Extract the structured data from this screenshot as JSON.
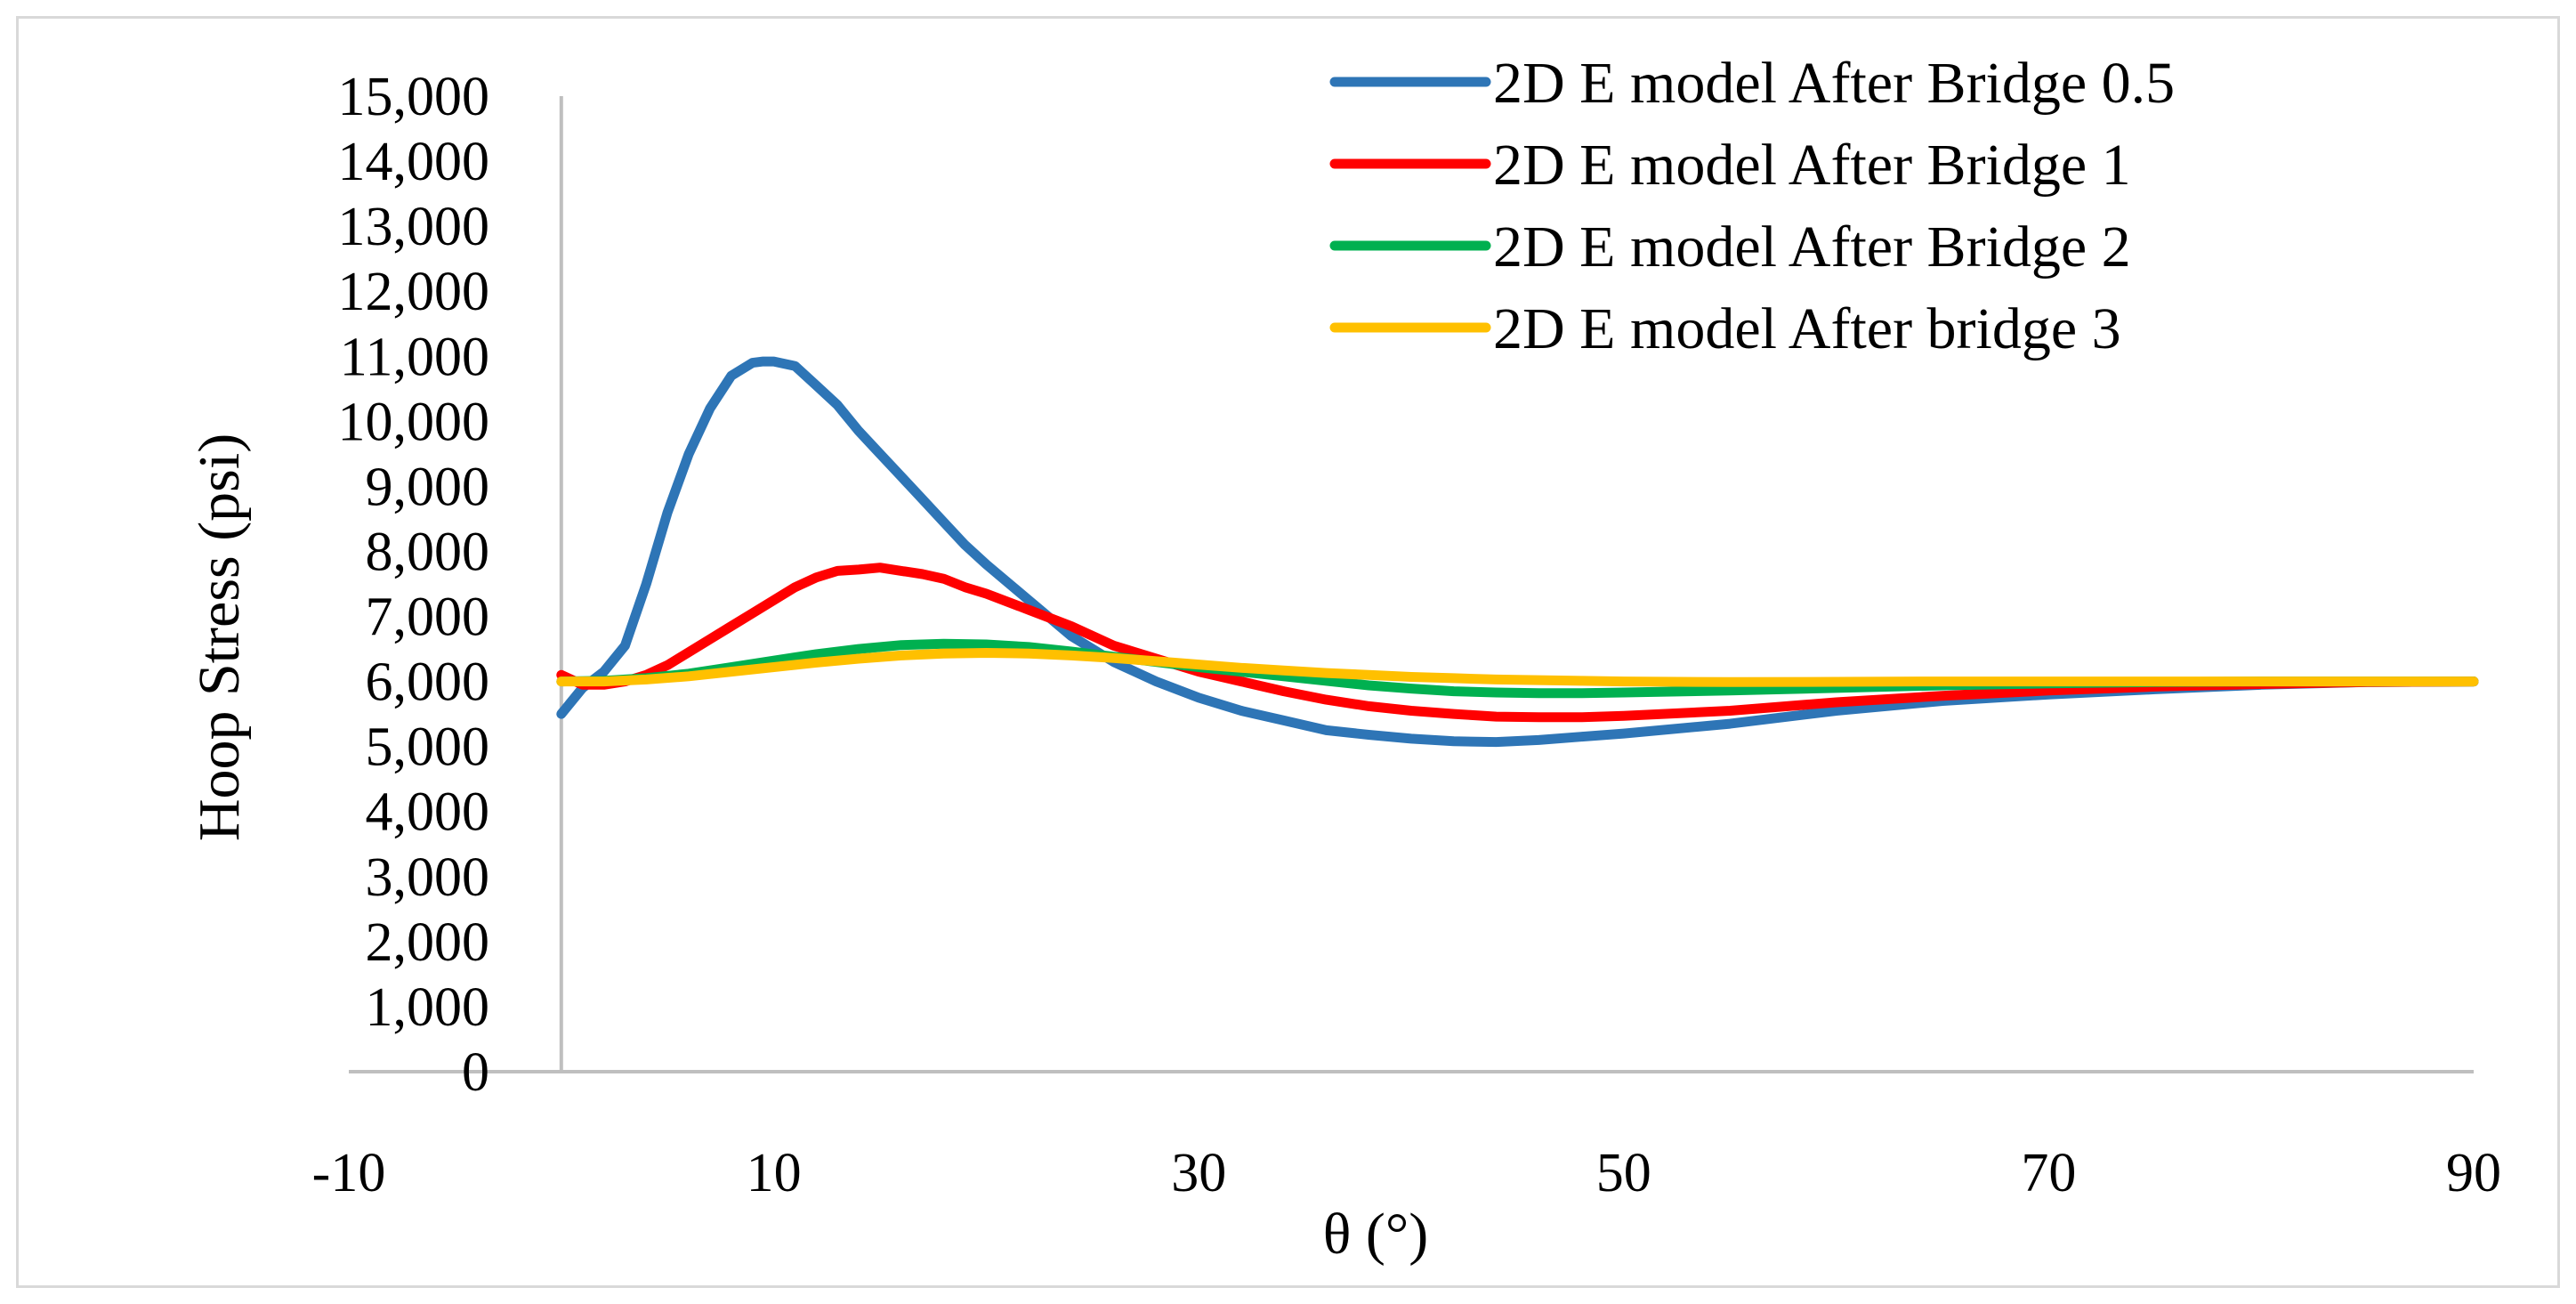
{
  "chart_data": {
    "type": "line",
    "title": "",
    "xlabel": "θ (°)",
    "ylabel": "Hoop Stress (psi)",
    "xlim": [
      -10,
      90
    ],
    "ylim": [
      0,
      15000
    ],
    "x_ticks": [
      -10,
      10,
      30,
      50,
      70,
      90
    ],
    "x_tick_labels": [
      "-10",
      "10",
      "30",
      "50",
      "70",
      "90"
    ],
    "y_ticks": [
      0,
      1000,
      2000,
      3000,
      4000,
      5000,
      6000,
      7000,
      8000,
      9000,
      10000,
      11000,
      12000,
      13000,
      14000,
      15000
    ],
    "y_tick_labels": [
      "0",
      "1,000",
      "2,000",
      "3,000",
      "4,000",
      "5,000",
      "6,000",
      "7,000",
      "8,000",
      "9,000",
      "10,000",
      "11,000",
      "12,000",
      "13,000",
      "14,000",
      "15,000"
    ],
    "grid": false,
    "legend_position": "top-right",
    "series": [
      {
        "name": "2D E model After Bridge 0.5",
        "color": "#2e75b6",
        "x": [
          0,
          1,
          2,
          3,
          4,
          5,
          6,
          7,
          8,
          9,
          9.5,
          10,
          11,
          12,
          13,
          14,
          15,
          16,
          17,
          18,
          19,
          20,
          22,
          24,
          26,
          28,
          30,
          32,
          34,
          36,
          38,
          40,
          42,
          44,
          46,
          48,
          50,
          55,
          60,
          65,
          70,
          75,
          80,
          85,
          90
        ],
        "y": [
          5500,
          5900,
          6150,
          6550,
          7500,
          8600,
          9500,
          10200,
          10700,
          10900,
          10920,
          10920,
          10850,
          10550,
          10250,
          9850,
          9500,
          9150,
          8800,
          8450,
          8100,
          7800,
          7250,
          6700,
          6300,
          6000,
          5750,
          5550,
          5400,
          5250,
          5180,
          5120,
          5080,
          5070,
          5100,
          5150,
          5200,
          5350,
          5550,
          5700,
          5800,
          5880,
          5950,
          5990,
          6000
        ]
      },
      {
        "name": "2D E model After Bridge 1",
        "color": "#ff0000",
        "x": [
          0,
          1,
          2,
          3,
          4,
          5,
          6,
          7,
          8,
          9,
          10,
          11,
          12,
          13,
          14,
          15,
          16,
          17,
          18,
          19,
          20,
          22,
          24,
          26,
          28,
          30,
          32,
          34,
          36,
          38,
          40,
          42,
          44,
          46,
          48,
          50,
          55,
          60,
          65,
          70,
          75,
          80,
          85,
          90
        ],
        "y": [
          6100,
          5950,
          5950,
          6000,
          6100,
          6250,
          6450,
          6650,
          6850,
          7050,
          7250,
          7450,
          7600,
          7700,
          7720,
          7750,
          7700,
          7650,
          7580,
          7450,
          7350,
          7100,
          6850,
          6550,
          6350,
          6150,
          6000,
          5850,
          5720,
          5620,
          5550,
          5500,
          5460,
          5450,
          5450,
          5470,
          5550,
          5680,
          5780,
          5860,
          5920,
          5960,
          5990,
          6000
        ]
      },
      {
        "name": "2D E model After Bridge 2",
        "color": "#00b050",
        "x": [
          0,
          2,
          4,
          6,
          8,
          10,
          12,
          14,
          16,
          18,
          20,
          22,
          24,
          26,
          28,
          30,
          32,
          34,
          36,
          38,
          40,
          42,
          44,
          46,
          48,
          50,
          55,
          60,
          65,
          70,
          75,
          80,
          85,
          90
        ],
        "y": [
          6000,
          6010,
          6050,
          6120,
          6220,
          6320,
          6420,
          6500,
          6560,
          6580,
          6570,
          6530,
          6460,
          6380,
          6300,
          6220,
          6150,
          6080,
          6010,
          5940,
          5890,
          5850,
          5830,
          5820,
          5820,
          5830,
          5860,
          5900,
          5940,
          5970,
          5990,
          6000,
          6000,
          6000
        ]
      },
      {
        "name": "2D E model After bridge 3",
        "color": "#ffc000",
        "x": [
          0,
          2,
          4,
          6,
          8,
          10,
          12,
          14,
          16,
          18,
          20,
          22,
          24,
          26,
          28,
          30,
          32,
          34,
          36,
          38,
          40,
          42,
          44,
          46,
          48,
          50,
          55,
          60,
          65,
          70,
          75,
          80,
          85,
          90
        ],
        "y": [
          6000,
          6000,
          6030,
          6080,
          6150,
          6220,
          6290,
          6350,
          6400,
          6430,
          6440,
          6430,
          6400,
          6360,
          6310,
          6260,
          6210,
          6170,
          6130,
          6100,
          6070,
          6050,
          6030,
          6020,
          6010,
          6000,
          5990,
          5995,
          6000,
          6000,
          6000,
          6000,
          6000,
          6000
        ]
      }
    ]
  }
}
